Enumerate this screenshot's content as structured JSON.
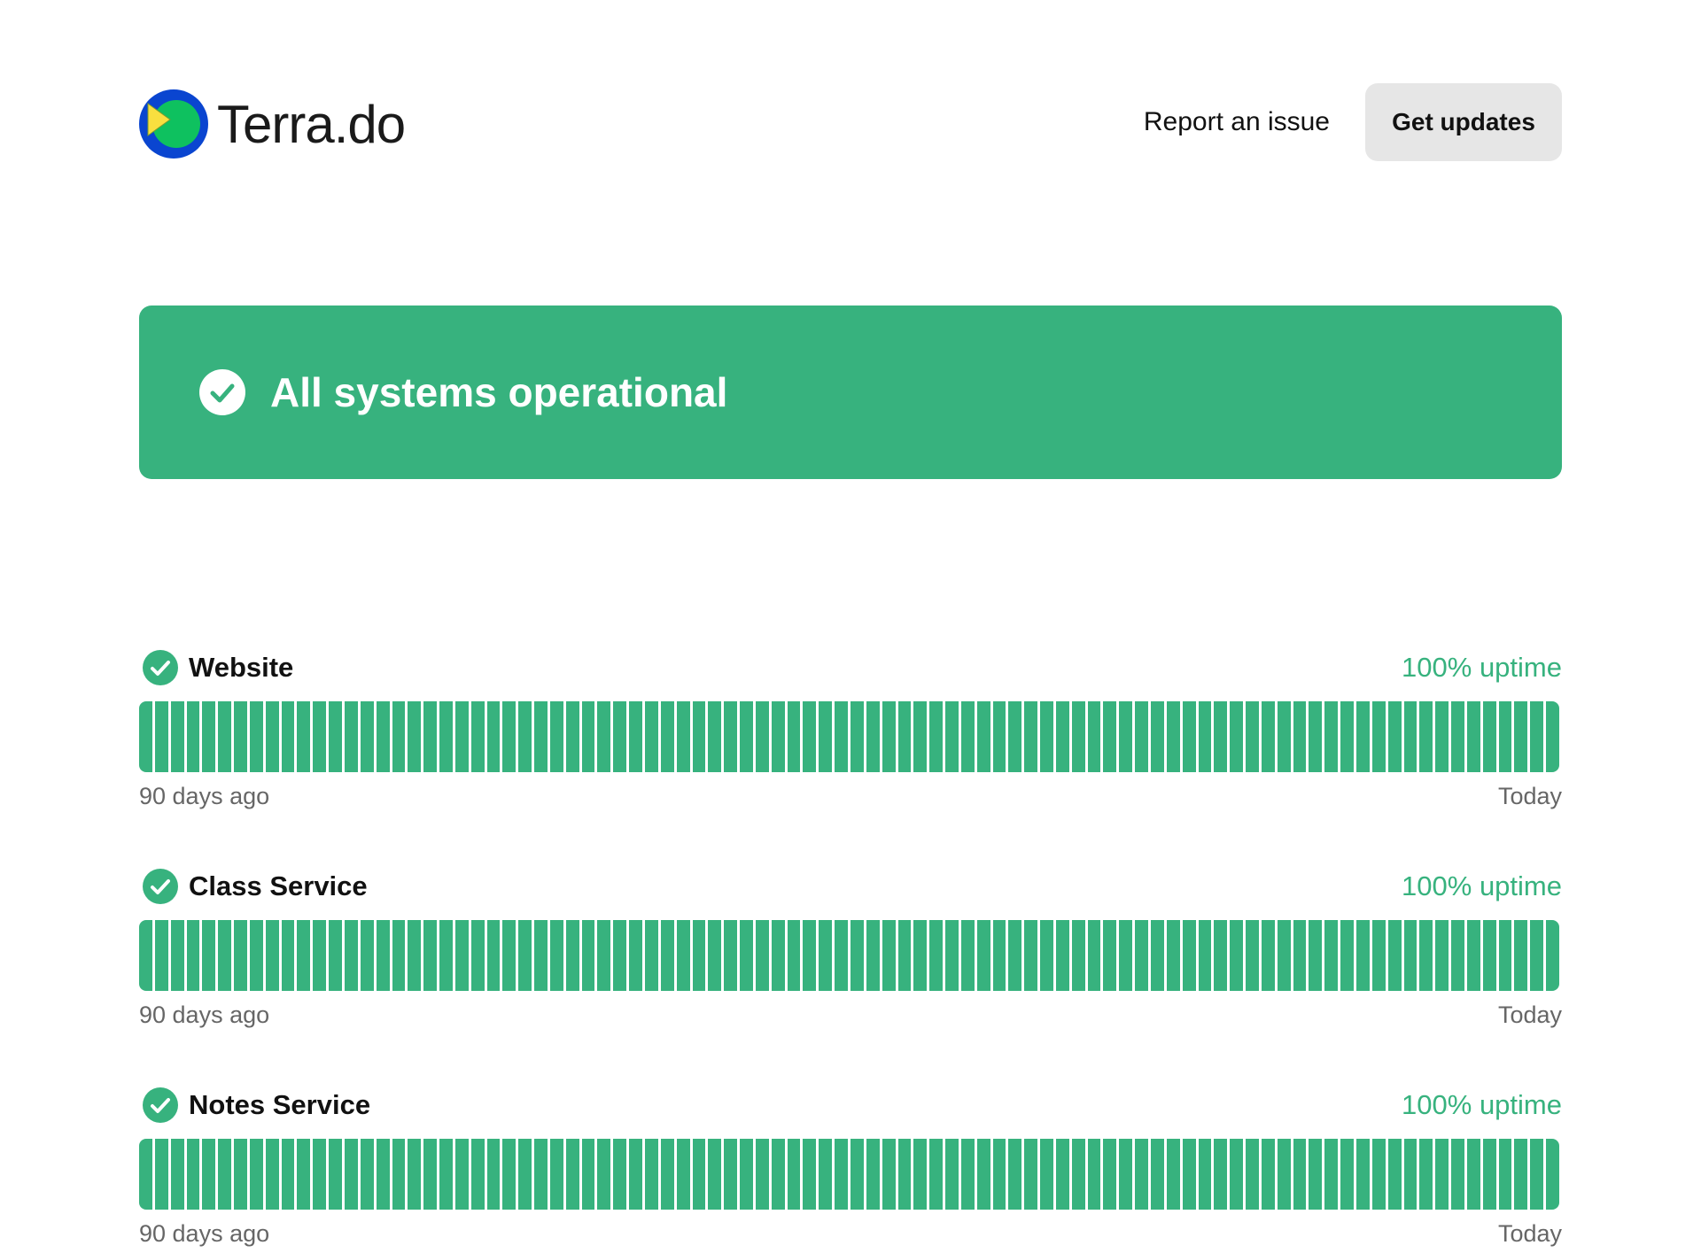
{
  "header": {
    "logo_text": "Terra.do",
    "report_label": "Report an issue",
    "updates_label": "Get updates"
  },
  "banner": {
    "status": "All systems operational",
    "color": "#37b27e"
  },
  "services": [
    {
      "name": "Website",
      "uptime": "100% uptime",
      "start": "90 days ago",
      "end": "Today",
      "days_up": 90
    },
    {
      "name": "Class Service",
      "uptime": "100% uptime",
      "start": "90 days ago",
      "end": "Today",
      "days_up": 90
    },
    {
      "name": "Notes Service",
      "uptime": "100% uptime",
      "start": "90 days ago",
      "end": "Today",
      "days_up": 90
    }
  ]
}
